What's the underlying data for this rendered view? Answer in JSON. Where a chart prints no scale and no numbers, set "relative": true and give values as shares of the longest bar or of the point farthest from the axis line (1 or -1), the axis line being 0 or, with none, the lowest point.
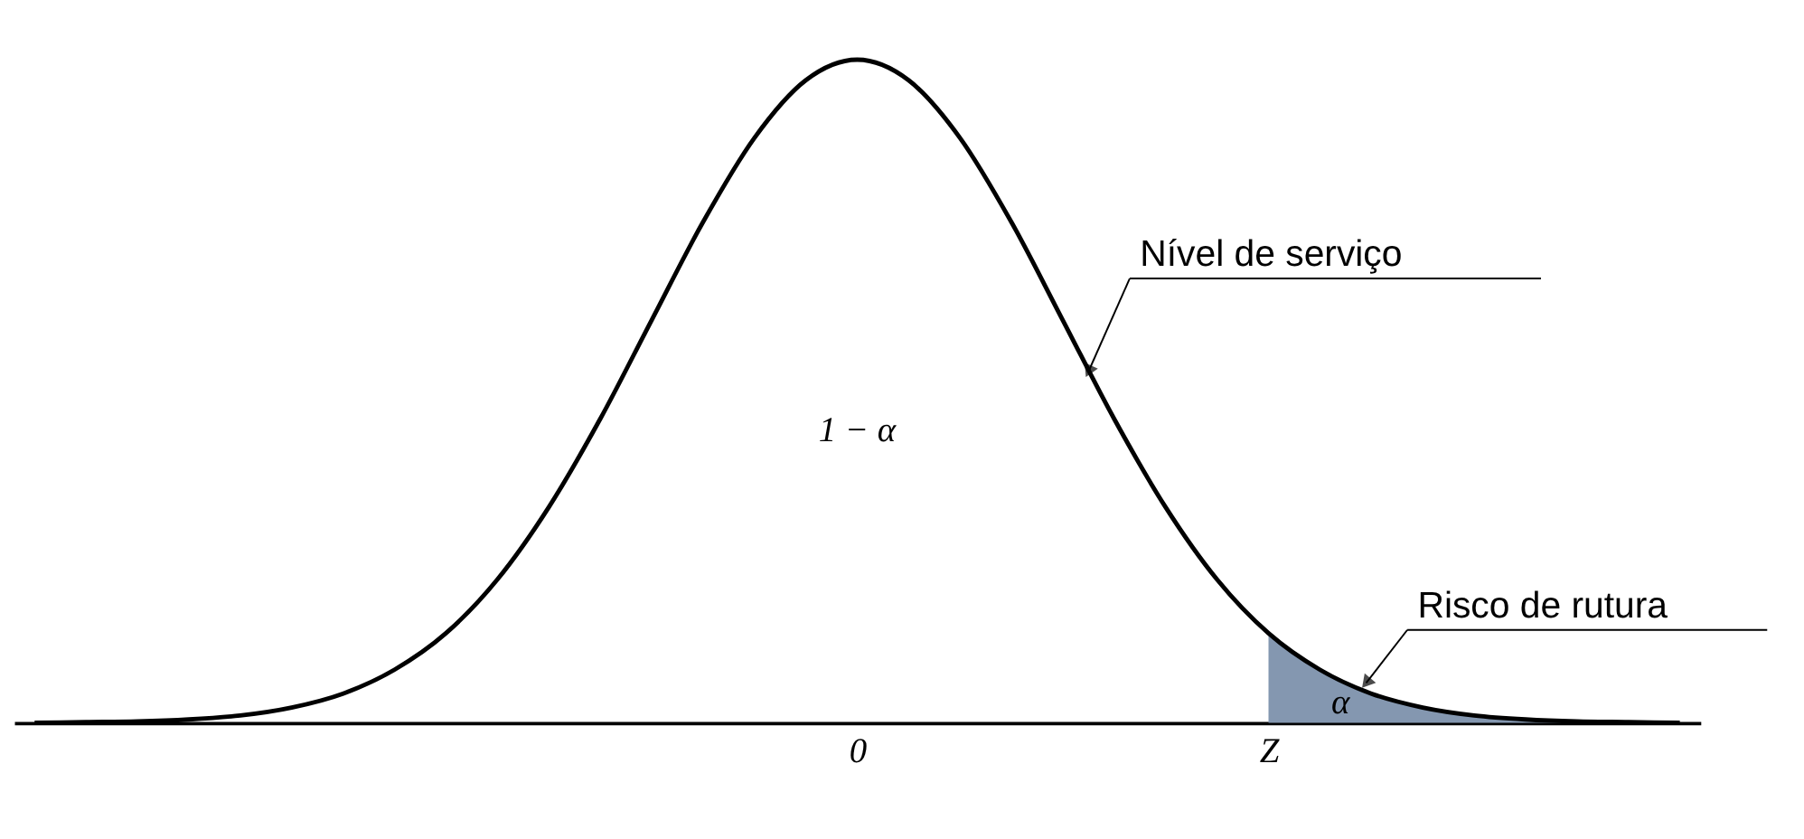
{
  "chart_data": {
    "type": "line",
    "relative": true,
    "grid": false,
    "marker": "none",
    "line_style": "solid",
    "categories": [
      null,
      null,
      null,
      null,
      null,
      null,
      null,
      null,
      null,
      null,
      null,
      null,
      null,
      null,
      null,
      null,
      "0",
      null,
      null,
      null,
      null,
      null,
      null,
      null,
      "Z",
      null,
      null,
      null,
      null,
      null,
      null,
      null,
      null
    ],
    "series": [
      {
        "color": "#000000",
        "values": [
          0.0,
          0.001,
          0.002,
          0.005,
          0.011,
          0.023,
          0.044,
          0.08,
          0.135,
          0.216,
          0.325,
          0.458,
          0.607,
          0.755,
          0.882,
          0.969,
          1,
          0.969,
          0.882,
          0.755,
          0.607,
          0.458,
          0.325,
          0.216,
          0.135,
          0.08,
          0.044,
          0.023,
          0.011,
          0.005,
          0.002,
          0.001,
          0.0
        ]
      },
      {
        "type": "area",
        "color": "#8497b0",
        "values": [
          null,
          null,
          null,
          null,
          null,
          null,
          null,
          null,
          null,
          null,
          null,
          null,
          null,
          null,
          null,
          null,
          null,
          null,
          null,
          null,
          null,
          null,
          null,
          null,
          0.135,
          0.08,
          0.044,
          0.023,
          0.011,
          0.005,
          0.002,
          0.001,
          0.0
        ]
      }
    ],
    "annotations": [
      "1 − α",
      "Nível de serviço",
      "Risco de rutura",
      "α"
    ]
  }
}
